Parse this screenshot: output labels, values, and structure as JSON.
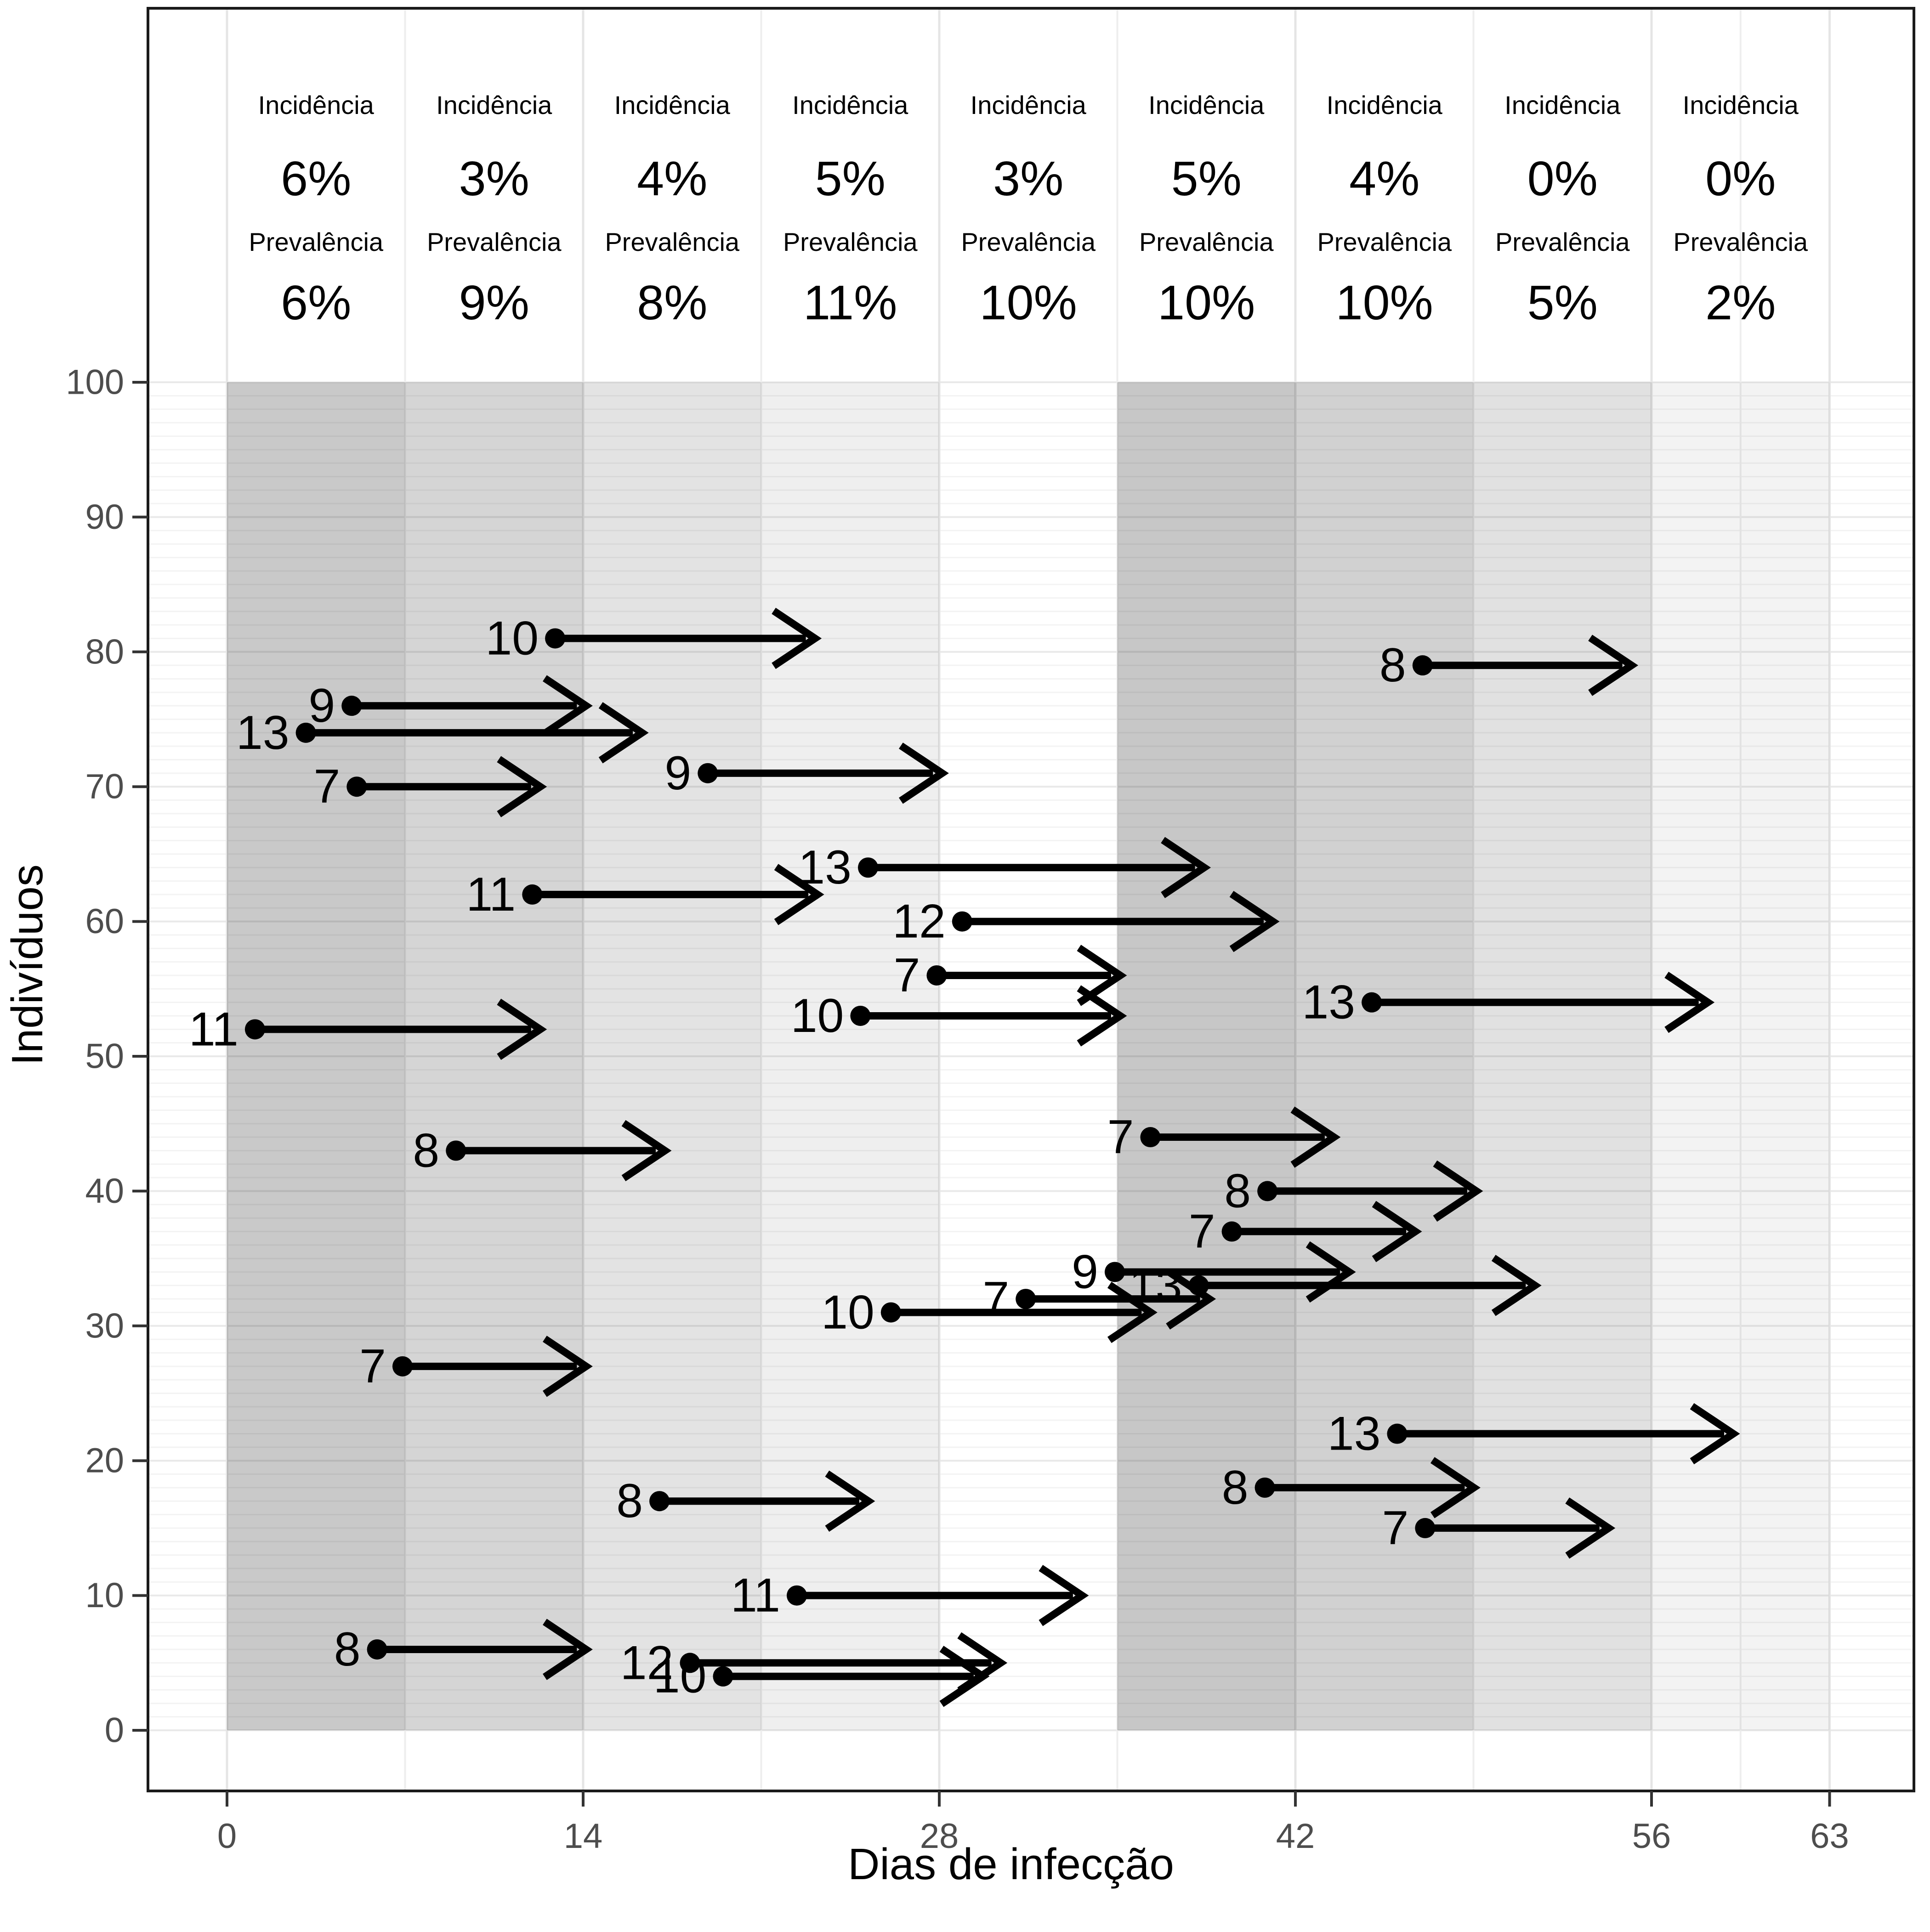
{
  "chart_data": {
    "type": "scatter",
    "subtype": "interval_arrows_timeline",
    "title": "",
    "xlabel": "Dias de infecção",
    "ylabel": "Indivíduos",
    "x_ticks": [
      0,
      14,
      28,
      42,
      56,
      63
    ],
    "y_ticks": [
      0,
      10,
      20,
      30,
      40,
      50,
      60,
      70,
      80,
      90,
      100
    ],
    "xlim": [
      -3.2,
      66.3
    ],
    "ylim": [
      -4.5,
      128
    ],
    "grid": {
      "vertical_major_days": [
        0,
        14,
        28,
        42,
        56,
        63
      ],
      "vertical_minor_days": [
        7,
        21,
        35,
        49,
        59.5
      ],
      "horizontal_unit_step": 1,
      "horizontal_max": 100
    },
    "legend_position": "none",
    "header": {
      "incidence_label": "Incidência",
      "prevalence_label": "Prevalência"
    },
    "windows": [
      {
        "day_start": 0,
        "day_end": 7,
        "incidence": "6%",
        "prevalence": "6%",
        "shade_alpha": 0.21
      },
      {
        "day_start": 7,
        "day_end": 14,
        "incidence": "3%",
        "prevalence": "9%",
        "shade_alpha": 0.165
      },
      {
        "day_start": 14,
        "day_end": 21,
        "incidence": "4%",
        "prevalence": "8%",
        "shade_alpha": 0.11
      },
      {
        "day_start": 21,
        "day_end": 28,
        "incidence": "5%",
        "prevalence": "11%",
        "shade_alpha": 0.063
      },
      {
        "day_start": 28,
        "day_end": 35,
        "incidence": "3%",
        "prevalence": "10%",
        "shade_alpha": 0.0
      },
      {
        "day_start": 35,
        "day_end": 42,
        "incidence": "5%",
        "prevalence": "10%",
        "shade_alpha": 0.22
      },
      {
        "day_start": 42,
        "day_end": 49,
        "incidence": "4%",
        "prevalence": "10%",
        "shade_alpha": 0.18
      },
      {
        "day_start": 49,
        "day_end": 56,
        "incidence": "0%",
        "prevalence": "5%",
        "shade_alpha": 0.118
      },
      {
        "day_start": 56,
        "day_end": 63,
        "incidence": "0%",
        "prevalence": "2%",
        "shade_alpha": 0.047
      }
    ],
    "arrows": [
      {
        "individual": 81,
        "start_day": 12.9,
        "duration_days": 10
      },
      {
        "individual": 79,
        "start_day": 47.0,
        "duration_days": 8
      },
      {
        "individual": 76,
        "start_day": 4.9,
        "duration_days": 9
      },
      {
        "individual": 74,
        "start_day": 3.1,
        "duration_days": 13
      },
      {
        "individual": 71,
        "start_day": 18.9,
        "duration_days": 9
      },
      {
        "individual": 70,
        "start_day": 5.1,
        "duration_days": 7
      },
      {
        "individual": 64,
        "start_day": 25.2,
        "duration_days": 13
      },
      {
        "individual": 62,
        "start_day": 12.0,
        "duration_days": 11
      },
      {
        "individual": 60,
        "start_day": 28.9,
        "duration_days": 12
      },
      {
        "individual": 56,
        "start_day": 27.9,
        "duration_days": 7
      },
      {
        "individual": 54,
        "start_day": 45.0,
        "duration_days": 13
      },
      {
        "individual": 53,
        "start_day": 24.9,
        "duration_days": 10
      },
      {
        "individual": 52,
        "start_day": 1.1,
        "duration_days": 11
      },
      {
        "individual": 44,
        "start_day": 36.3,
        "duration_days": 7
      },
      {
        "individual": 43,
        "start_day": 9.0,
        "duration_days": 8
      },
      {
        "individual": 40,
        "start_day": 40.9,
        "duration_days": 8
      },
      {
        "individual": 37,
        "start_day": 39.5,
        "duration_days": 7
      },
      {
        "individual": 34,
        "start_day": 34.9,
        "duration_days": 9
      },
      {
        "individual": 33,
        "start_day": 38.2,
        "duration_days": 13
      },
      {
        "individual": 32,
        "start_day": 31.4,
        "duration_days": 7
      },
      {
        "individual": 31,
        "start_day": 26.1,
        "duration_days": 10
      },
      {
        "individual": 27,
        "start_day": 6.9,
        "duration_days": 7
      },
      {
        "individual": 22,
        "start_day": 46.0,
        "duration_days": 13
      },
      {
        "individual": 18,
        "start_day": 40.8,
        "duration_days": 8
      },
      {
        "individual": 17,
        "start_day": 17.0,
        "duration_days": 8
      },
      {
        "individual": 15,
        "start_day": 47.1,
        "duration_days": 7
      },
      {
        "individual": 10,
        "start_day": 22.4,
        "duration_days": 11
      },
      {
        "individual": 6,
        "start_day": 5.9,
        "duration_days": 8
      },
      {
        "individual": 5,
        "start_day": 18.2,
        "duration_days": 12
      },
      {
        "individual": 4,
        "start_day": 19.5,
        "duration_days": 10
      }
    ],
    "colors": {
      "background": "#ffffff",
      "arrow": "#000000",
      "band_base": "#000000",
      "grid_major_h": "#e9e9e9",
      "grid_minor_h": "#f3f3f3",
      "grid_major_v": "#e5e5e5",
      "grid_minor_v": "#eeeeee",
      "panel_border": "#1a1a1a",
      "tick_mark": "#333333",
      "tick_label": "#4d4d4d",
      "axis_title": "#000000",
      "header_text": "#000000"
    }
  }
}
